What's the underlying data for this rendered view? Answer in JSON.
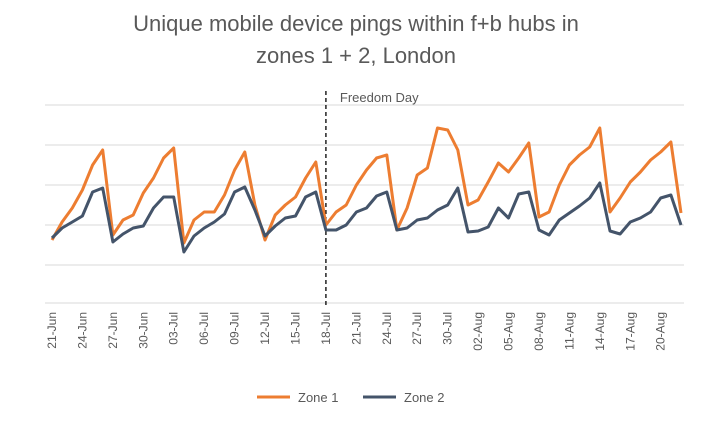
{
  "chart_data": {
    "type": "line",
    "title": [
      "Unique mobile device pings within f+b hubs in",
      "zones 1 + 2, London"
    ],
    "categories": [
      "21-Jun",
      null,
      null,
      "24-Jun",
      null,
      null,
      "27-Jun",
      null,
      null,
      "30-Jun",
      null,
      null,
      "03-Jul",
      null,
      null,
      "06-Jul",
      null,
      null,
      "09-Jul",
      null,
      null,
      "12-Jul",
      null,
      null,
      "15-Jul",
      null,
      null,
      "18-Jul",
      null,
      null,
      "21-Jul",
      null,
      null,
      "24-Jul",
      null,
      null,
      "27-Jul",
      null,
      null,
      "30-Jul",
      null,
      null,
      "02-Aug",
      null,
      null,
      "05-Aug",
      null,
      null,
      "08-Aug",
      null,
      null,
      "11-Aug",
      null,
      null,
      "14-Aug",
      null,
      null,
      "17-Aug",
      null,
      null,
      "20-Aug",
      null,
      null
    ],
    "series": [
      {
        "name": "Zone 1",
        "color": "#ed7d31",
        "values": [
          65,
          83,
          97,
          115,
          140,
          155,
          70,
          85,
          90,
          112,
          127,
          147,
          157,
          62,
          85,
          93,
          93,
          110,
          135,
          153,
          100,
          65,
          90,
          100,
          108,
          127,
          143,
          80,
          93,
          100,
          120,
          135,
          147,
          150,
          75,
          97,
          130,
          137,
          177,
          175,
          155,
          100,
          105,
          123,
          142,
          133,
          147,
          162,
          88,
          93,
          120,
          140,
          150,
          158,
          177,
          93,
          107,
          123,
          133,
          145,
          153,
          163,
          92
        ]
      },
      {
        "name": "Zone 2",
        "color": "#44546a",
        "values": [
          67,
          77,
          83,
          89,
          113,
          117,
          63,
          71,
          77,
          79,
          97,
          108,
          108,
          53,
          69,
          77,
          83,
          91,
          113,
          118,
          95,
          69,
          79,
          87,
          89,
          108,
          113,
          75,
          75,
          80,
          93,
          97,
          109,
          113,
          75,
          77,
          85,
          87,
          95,
          100,
          117,
          73,
          74,
          78,
          97,
          87,
          111,
          113,
          75,
          70,
          85,
          92,
          99,
          107,
          122,
          74,
          71,
          83,
          87,
          93,
          107,
          110,
          80
        ]
      }
    ],
    "ylim": [
      0,
      200
    ],
    "ygrid": [
      40,
      80,
      120,
      160,
      200
    ],
    "annotations": [
      {
        "text": "Freedom Day",
        "x": "18-Jul"
      }
    ],
    "legend": "bottom"
  }
}
